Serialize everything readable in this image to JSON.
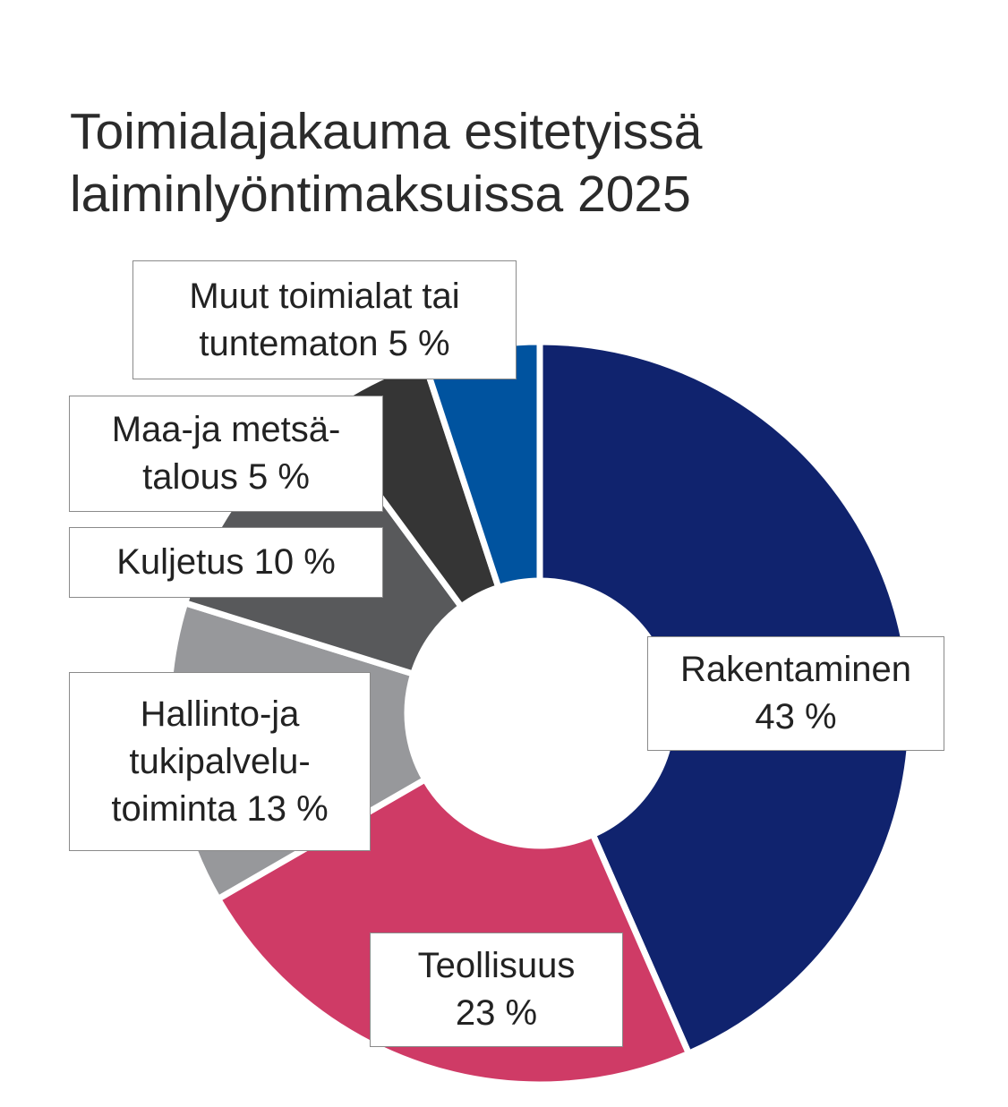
{
  "chart_data": {
    "type": "pie",
    "donut": true,
    "title_lines": [
      "Toimialajakauma esitetyissä",
      "laiminlyöntimaksuissa 2025"
    ],
    "unit": "%",
    "slices": [
      {
        "value": 43,
        "color": "#10236e",
        "label_lines": [
          "Rakentaminen",
          "43 %"
        ]
      },
      {
        "value": 23,
        "color": "#cf3b66",
        "label_lines": [
          "Teollisuus",
          "23 %"
        ]
      },
      {
        "value": 13,
        "color": "#97989b",
        "label_lines": [
          "Hallinto-ja",
          "tukipalvelu-",
          "toiminta 13 %"
        ]
      },
      {
        "value": 10,
        "color": "#58595b",
        "label_lines": [
          "Kuljetus 10 %"
        ]
      },
      {
        "value": 5,
        "color": "#353535",
        "label_lines": [
          "Maa-ja metsä-",
          "talous 5 %"
        ]
      },
      {
        "value": 5,
        "color": "#00539f",
        "label_lines": [
          "Muut toimialat tai",
          "tuntematon 5 %"
        ]
      }
    ]
  }
}
